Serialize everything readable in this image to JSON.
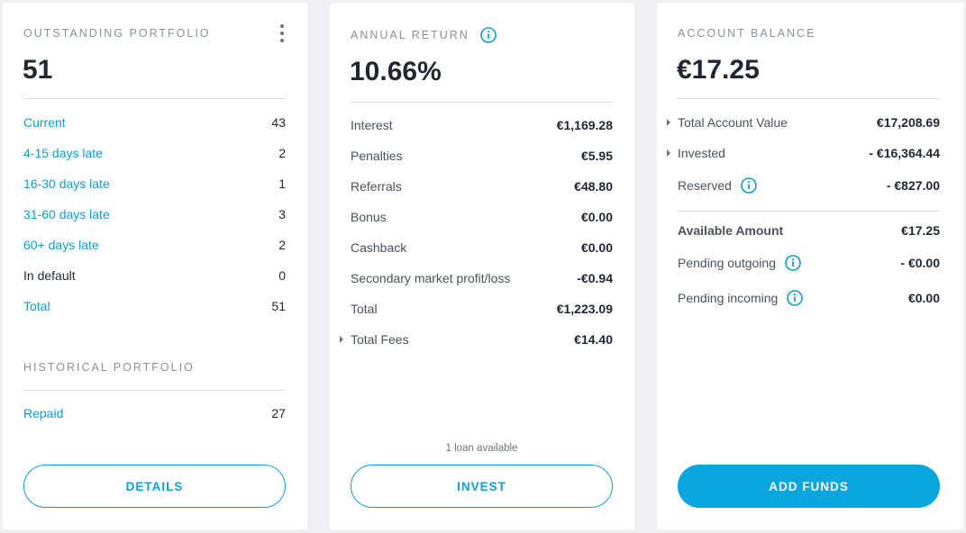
{
  "outstanding": {
    "title": "OUTSTANDING PORTFOLIO",
    "total_count": "51",
    "rows": [
      {
        "label": "Current",
        "value": "43"
      },
      {
        "label": "4-15 days late",
        "value": "2"
      },
      {
        "label": "16-30 days late",
        "value": "1"
      },
      {
        "label": "31-60 days late",
        "value": "3"
      },
      {
        "label": "60+ days late",
        "value": "2"
      },
      {
        "label": "In default",
        "value": "0"
      },
      {
        "label": "Total",
        "value": "51"
      }
    ],
    "menu_icon": "kebab-menu-icon"
  },
  "historical": {
    "title": "HISTORICAL PORTFOLIO",
    "rows": [
      {
        "label": "Repaid",
        "value": "27"
      }
    ],
    "details_button": "DETAILS"
  },
  "annual_return": {
    "title": "ANNUAL RETURN",
    "info_icon": "info-icon",
    "value": "10.66%",
    "rows": [
      {
        "label": "Interest",
        "value": "€1,169.28"
      },
      {
        "label": "Penalties",
        "value": "€5.95"
      },
      {
        "label": "Referrals",
        "value": "€48.80"
      },
      {
        "label": "Bonus",
        "value": "€0.00"
      },
      {
        "label": "Cashback",
        "value": "€0.00"
      },
      {
        "label": "Secondary market profit/loss",
        "value": "-€0.94"
      },
      {
        "label": "Total",
        "value": "€1,223.09"
      },
      {
        "label": "Total Fees",
        "value": "€14.40"
      }
    ],
    "loan_note": "1 loan available",
    "invest_button": "INVEST"
  },
  "account_balance": {
    "title": "ACCOUNT BALANCE",
    "value": "€17.25",
    "rows": [
      {
        "label": "Total Account Value",
        "value": "€17,208.69"
      },
      {
        "label": "Invested",
        "value": "- €16,364.44"
      },
      {
        "label": "Reserved",
        "value": "- €827.00"
      }
    ],
    "rows2": [
      {
        "label": "Available Amount",
        "value": "€17.25"
      },
      {
        "label": "Pending outgoing",
        "value": "- €0.00"
      },
      {
        "label": "Pending incoming",
        "value": "€0.00"
      }
    ],
    "add_funds_button": "ADD FUNDS"
  },
  "colors": {
    "accent": "#0aa6df",
    "link": "#0c9fd3",
    "text": "#1f2733",
    "muted": "#8a919b",
    "background": "#eef0f3"
  }
}
